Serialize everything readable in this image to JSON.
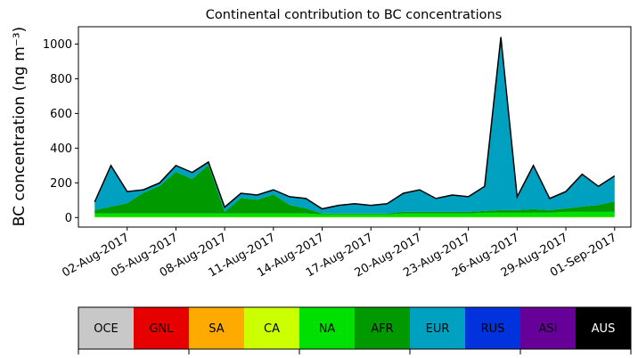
{
  "chart_data": {
    "type": "stacked_area",
    "title": "Continental contribution to BC concentrations",
    "ylabel": "BC concentration (ng m⁻³)",
    "x": [
      "2017-07-31",
      "2017-08-01",
      "2017-08-02",
      "2017-08-03",
      "2017-08-04",
      "2017-08-05",
      "2017-08-06",
      "2017-08-07",
      "2017-08-08",
      "2017-08-09",
      "2017-08-10",
      "2017-08-11",
      "2017-08-12",
      "2017-08-13",
      "2017-08-14",
      "2017-08-15",
      "2017-08-16",
      "2017-08-17",
      "2017-08-18",
      "2017-08-19",
      "2017-08-20",
      "2017-08-21",
      "2017-08-22",
      "2017-08-23",
      "2017-08-24",
      "2017-08-25",
      "2017-08-26",
      "2017-08-27",
      "2017-08-28",
      "2017-08-29",
      "2017-08-30",
      "2017-08-31",
      "2017-09-01"
    ],
    "xlim": [
      "2017-07-30",
      "2017-09-02"
    ],
    "xticks": [
      {
        "value": "2017-08-02",
        "label": "02-Aug-2017"
      },
      {
        "value": "2017-08-05",
        "label": "05-Aug-2017"
      },
      {
        "value": "2017-08-08",
        "label": "08-Aug-2017"
      },
      {
        "value": "2017-08-11",
        "label": "11-Aug-2017"
      },
      {
        "value": "2017-08-14",
        "label": "14-Aug-2017"
      },
      {
        "value": "2017-08-17",
        "label": "17-Aug-2017"
      },
      {
        "value": "2017-08-20",
        "label": "20-Aug-2017"
      },
      {
        "value": "2017-08-23",
        "label": "23-Aug-2017"
      },
      {
        "value": "2017-08-26",
        "label": "26-Aug-2017"
      },
      {
        "value": "2017-08-29",
        "label": "29-Aug-2017"
      },
      {
        "value": "2017-09-01",
        "label": "01-Sep-2017"
      }
    ],
    "ylim": [
      -55,
      1100
    ],
    "yticks": [
      0,
      200,
      400,
      600,
      800,
      1000
    ],
    "series": [
      {
        "name": "OCE",
        "color": "#c8c8c8",
        "values": [
          0,
          0,
          0,
          0,
          0,
          0,
          0,
          0,
          0,
          0,
          0,
          0,
          0,
          0,
          0,
          0,
          0,
          0,
          0,
          0,
          0,
          0,
          0,
          0,
          0,
          0,
          0,
          0,
          0,
          0,
          0,
          0,
          0
        ]
      },
      {
        "name": "GNL",
        "color": "#e60000",
        "values": [
          0,
          0,
          0,
          0,
          0,
          0,
          0,
          0,
          0,
          0,
          0,
          0,
          0,
          0,
          0,
          0,
          0,
          0,
          0,
          0,
          0,
          0,
          0,
          0,
          0,
          0,
          0,
          0,
          0,
          0,
          0,
          0,
          0
        ]
      },
      {
        "name": "SA",
        "color": "#ffaa00",
        "values": [
          0,
          0,
          0,
          0,
          0,
          0,
          0,
          0,
          0,
          0,
          0,
          0,
          0,
          0,
          0,
          0,
          0,
          0,
          0,
          0,
          0,
          0,
          0,
          0,
          0,
          0,
          0,
          0,
          0,
          0,
          0,
          0,
          0
        ]
      },
      {
        "name": "CA",
        "color": "#ccff00",
        "values": [
          3,
          3,
          3,
          3,
          3,
          3,
          3,
          3,
          3,
          3,
          3,
          3,
          3,
          3,
          3,
          3,
          3,
          3,
          3,
          3,
          3,
          3,
          3,
          3,
          3,
          3,
          3,
          3,
          3,
          3,
          3,
          3,
          3
        ]
      },
      {
        "name": "NA",
        "color": "#00e000",
        "values": [
          20,
          20,
          20,
          20,
          20,
          20,
          20,
          20,
          20,
          20,
          20,
          20,
          20,
          20,
          15,
          15,
          15,
          15,
          15,
          20,
          20,
          20,
          20,
          20,
          25,
          25,
          25,
          25,
          25,
          30,
          30,
          30,
          30
        ]
      },
      {
        "name": "AFR",
        "color": "#009900",
        "values": [
          20,
          40,
          60,
          120,
          160,
          240,
          200,
          280,
          10,
          90,
          80,
          110,
          50,
          30,
          5,
          5,
          5,
          5,
          5,
          10,
          10,
          10,
          10,
          10,
          10,
          15,
          15,
          20,
          15,
          20,
          30,
          40,
          60
        ]
      },
      {
        "name": "EUR",
        "color": "#00a0c0",
        "values": [
          47,
          237,
          67,
          17,
          17,
          37,
          37,
          17,
          27,
          27,
          27,
          27,
          47,
          57,
          27,
          47,
          57,
          47,
          57,
          107,
          127,
          77,
          97,
          87,
          142,
          997,
          77,
          252,
          67,
          97,
          187,
          107,
          147
        ]
      },
      {
        "name": "RUS",
        "color": "#0033dd",
        "values": [
          0,
          0,
          0,
          0,
          0,
          0,
          0,
          0,
          0,
          0,
          0,
          0,
          0,
          0,
          0,
          0,
          0,
          0,
          0,
          0,
          0,
          0,
          0,
          0,
          0,
          0,
          0,
          0,
          0,
          0,
          0,
          0,
          0
        ]
      },
      {
        "name": "ASI",
        "color": "#660099",
        "values": [
          0,
          0,
          0,
          0,
          0,
          0,
          0,
          0,
          0,
          0,
          0,
          0,
          0,
          0,
          0,
          0,
          0,
          0,
          0,
          0,
          0,
          0,
          0,
          0,
          0,
          0,
          0,
          0,
          0,
          0,
          0,
          0,
          0
        ]
      },
      {
        "name": "AUS",
        "color": "#000000",
        "values": [
          0,
          0,
          0,
          0,
          0,
          0,
          0,
          0,
          0,
          0,
          0,
          0,
          0,
          0,
          0,
          0,
          0,
          0,
          0,
          0,
          0,
          0,
          0,
          0,
          0,
          0,
          0,
          0,
          0,
          0,
          0,
          0,
          0
        ]
      }
    ]
  }
}
